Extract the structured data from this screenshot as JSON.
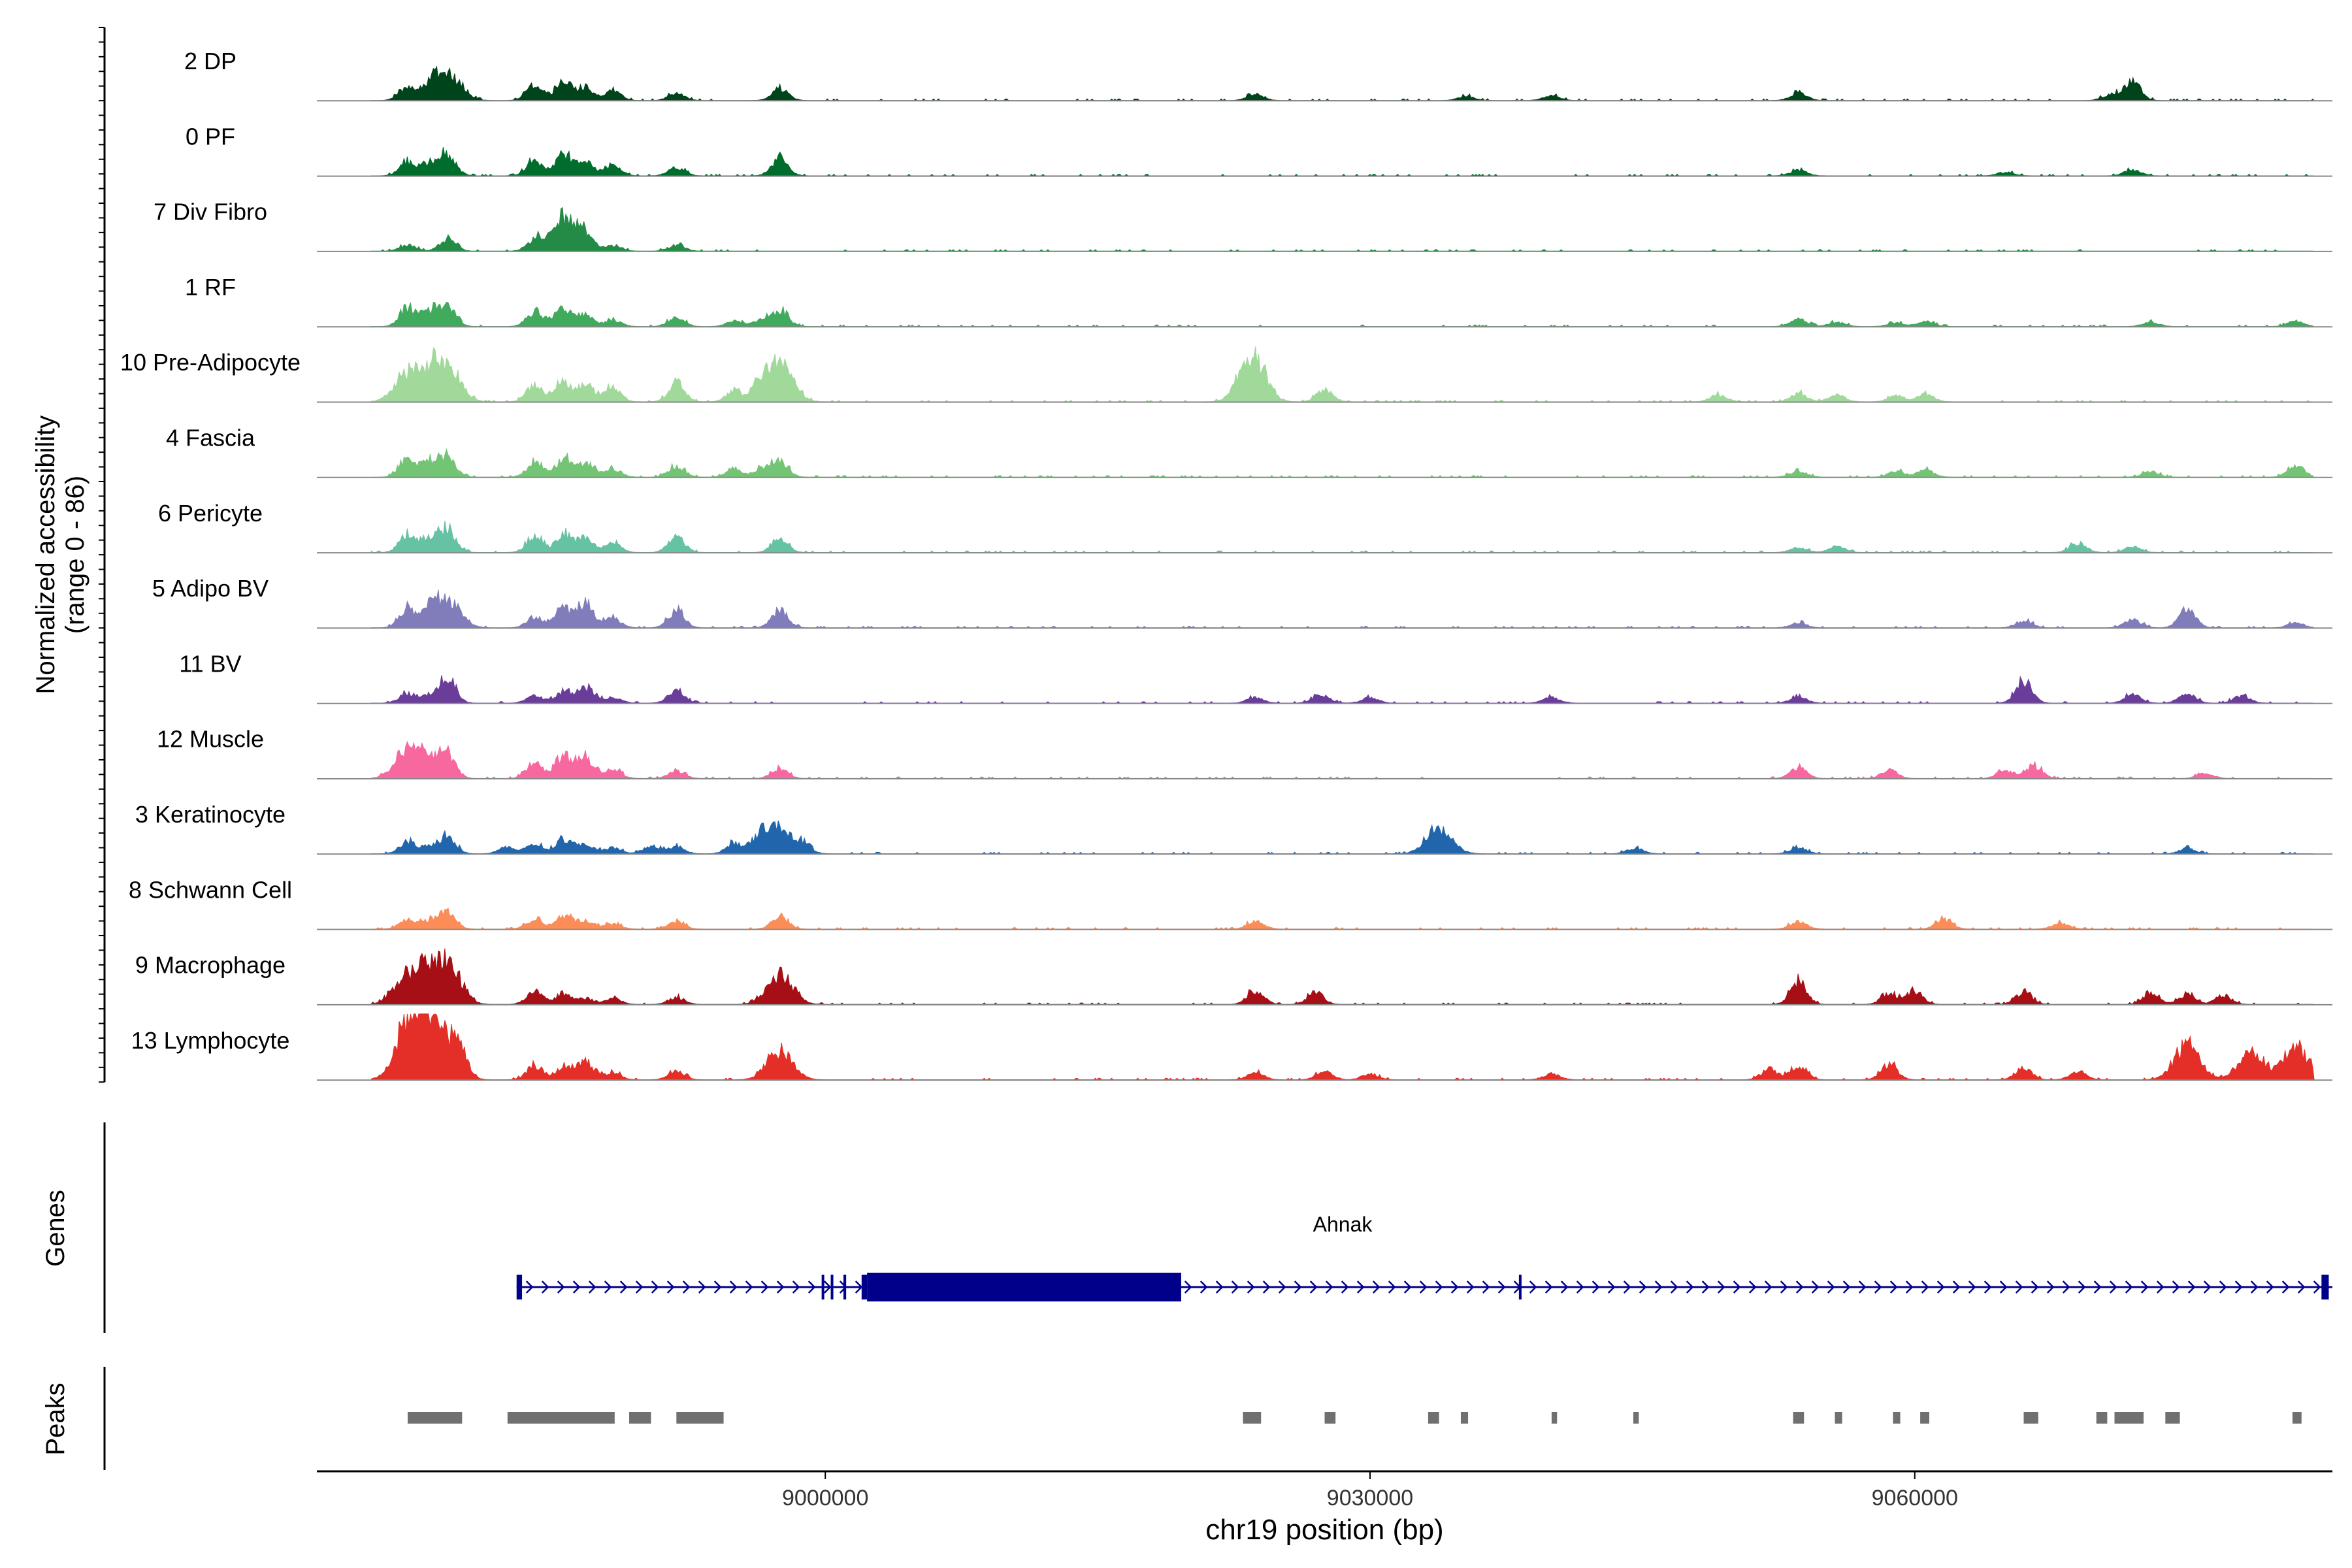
{
  "chart_data": {
    "type": "area",
    "title": "",
    "ylabel": "Normalized accessibility",
    "ylabel_range": "(range 0 - 86)",
    "y_range": [
      0,
      86
    ],
    "xlabel": "chr19 position (bp)",
    "x_range": [
      8972000,
      9083000
    ],
    "x_ticks": [
      {
        "value": 9000000,
        "label": "9000000"
      },
      {
        "value": 9030000,
        "label": "9030000"
      },
      {
        "value": 9060000,
        "label": "9060000"
      }
    ],
    "grid": false,
    "tracks": [
      {
        "name": "2 DP",
        "color": "#00441b",
        "peaks": [
          [
            8977000,
            2.3
          ],
          [
            8978200,
            1.8
          ],
          [
            8979200,
            4.5
          ],
          [
            8984000,
            2.6
          ],
          [
            8985600,
            3.2
          ],
          [
            8986800,
            1.9
          ],
          [
            8988300,
            1.6
          ],
          [
            8991800,
            1.2
          ],
          [
            8997500,
            2.0
          ],
          [
            9023700,
            1.1
          ],
          [
            9035300,
            0.7
          ],
          [
            9040000,
            0.8
          ],
          [
            9053600,
            1.2
          ],
          [
            9072000,
            3.2
          ],
          [
            9070800,
            1.0
          ]
        ]
      },
      {
        "name": "0 PF",
        "color": "#006d2c",
        "peaks": [
          [
            8977000,
            2.3
          ],
          [
            8978200,
            1.8
          ],
          [
            8979200,
            3.6
          ],
          [
            8984000,
            2.6
          ],
          [
            8985600,
            3.4
          ],
          [
            8986800,
            2.2
          ],
          [
            8988300,
            1.6
          ],
          [
            8991800,
            1.4
          ],
          [
            8997500,
            3.0
          ],
          [
            9053600,
            0.9
          ],
          [
            9065000,
            0.6
          ],
          [
            9072000,
            1.0
          ]
        ]
      },
      {
        "name": "7 Div Fibro",
        "color": "#238b45",
        "peaks": [
          [
            8977000,
            1.0
          ],
          [
            8979200,
            2.0
          ],
          [
            8984000,
            1.8
          ],
          [
            8985600,
            5.6
          ],
          [
            8986800,
            2.2
          ],
          [
            8988300,
            1.0
          ],
          [
            8991800,
            1.0
          ]
        ]
      },
      {
        "name": "1 RF",
        "color": "#41ab5d",
        "peaks": [
          [
            8977000,
            3.0
          ],
          [
            8978200,
            2.5
          ],
          [
            8979200,
            3.2
          ],
          [
            8984000,
            2.4
          ],
          [
            8985600,
            3.0
          ],
          [
            8986800,
            2.0
          ],
          [
            8988300,
            1.0
          ],
          [
            8991800,
            1.4
          ],
          [
            8995000,
            0.9
          ],
          [
            8996500,
            1.0
          ],
          [
            8997500,
            2.6
          ],
          [
            9053600,
            1.3
          ],
          [
            9055700,
            0.7
          ],
          [
            9059000,
            0.6
          ],
          [
            9060600,
            0.8
          ],
          [
            9073000,
            0.7
          ],
          [
            9081000,
            0.9
          ]
        ]
      },
      {
        "name": "10 Pre-Adipocyte",
        "color": "#a1d99b",
        "peaks": [
          [
            8977000,
            4.8
          ],
          [
            8978200,
            3.8
          ],
          [
            8979200,
            5.5
          ],
          [
            8984000,
            2.8
          ],
          [
            8985600,
            3.4
          ],
          [
            8986800,
            2.6
          ],
          [
            8988300,
            2.4
          ],
          [
            8991800,
            3.0
          ],
          [
            8995000,
            1.8
          ],
          [
            8996500,
            2.6
          ],
          [
            8997500,
            6.5
          ],
          [
            9023500,
            8.0
          ],
          [
            9027500,
            2.0
          ],
          [
            9049200,
            1.2
          ],
          [
            9053600,
            1.4
          ],
          [
            9055700,
            1.2
          ],
          [
            9059000,
            1.0
          ],
          [
            9060600,
            1.3
          ]
        ]
      },
      {
        "name": "4 Fascia",
        "color": "#74c476",
        "peaks": [
          [
            8977000,
            3.0
          ],
          [
            8978200,
            2.5
          ],
          [
            8979200,
            3.2
          ],
          [
            8984000,
            2.4
          ],
          [
            8985600,
            3.0
          ],
          [
            8986800,
            2.4
          ],
          [
            8988300,
            1.4
          ],
          [
            8991800,
            1.8
          ],
          [
            8995000,
            1.2
          ],
          [
            8996500,
            1.4
          ],
          [
            8997500,
            2.6
          ],
          [
            9053600,
            1.0
          ],
          [
            9059000,
            1.0
          ],
          [
            9060600,
            1.2
          ],
          [
            9081000,
            1.9
          ],
          [
            9073000,
            0.9
          ]
        ]
      },
      {
        "name": "6 Pericyte",
        "color": "#66c2a4",
        "peaks": [
          [
            8977000,
            3.0
          ],
          [
            8978200,
            2.4
          ],
          [
            8979200,
            3.8
          ],
          [
            8984000,
            2.6
          ],
          [
            8985600,
            3.0
          ],
          [
            8986800,
            2.4
          ],
          [
            8988300,
            1.6
          ],
          [
            8991800,
            2.6
          ],
          [
            8997500,
            2.2
          ],
          [
            9053600,
            0.8
          ],
          [
            9055700,
            1.0
          ],
          [
            9069000,
            1.6
          ],
          [
            9072000,
            0.9
          ]
        ]
      },
      {
        "name": "5 Adipo BV",
        "color": "#807dba",
        "peaks": [
          [
            8977000,
            3.2
          ],
          [
            8978200,
            2.0
          ],
          [
            8979200,
            4.8
          ],
          [
            8984000,
            1.8
          ],
          [
            8985600,
            3.2
          ],
          [
            8986800,
            3.8
          ],
          [
            8988300,
            1.6
          ],
          [
            8991800,
            2.8
          ],
          [
            8997500,
            3.0
          ],
          [
            9053600,
            0.8
          ],
          [
            9066000,
            1.2
          ],
          [
            9072000,
            1.4
          ],
          [
            9075000,
            3.2
          ],
          [
            9081000,
            0.8
          ]
        ]
      },
      {
        "name": "11 BV",
        "color": "#6a3d9a",
        "peaks": [
          [
            8977000,
            1.6
          ],
          [
            8978200,
            1.2
          ],
          [
            8979200,
            4.0
          ],
          [
            8984000,
            1.2
          ],
          [
            8985600,
            1.8
          ],
          [
            8986800,
            2.6
          ],
          [
            8988300,
            1.0
          ],
          [
            8991800,
            2.0
          ],
          [
            9023700,
            1.0
          ],
          [
            9027300,
            1.4
          ],
          [
            9030000,
            0.9
          ],
          [
            9040000,
            1.0
          ],
          [
            9053600,
            1.0
          ],
          [
            9066000,
            3.6
          ],
          [
            9072000,
            1.4
          ],
          [
            9075000,
            1.6
          ],
          [
            9078000,
            1.2
          ]
        ]
      },
      {
        "name": "12 Muscle",
        "color": "#f768a1",
        "peaks": [
          [
            8977000,
            4.5
          ],
          [
            8978200,
            3.2
          ],
          [
            8979200,
            4.0
          ],
          [
            8984000,
            2.6
          ],
          [
            8985600,
            3.8
          ],
          [
            8986800,
            3.4
          ],
          [
            8988300,
            1.6
          ],
          [
            8991800,
            1.2
          ],
          [
            8997500,
            1.6
          ],
          [
            9053600,
            1.8
          ],
          [
            9058600,
            1.4
          ],
          [
            9065000,
            1.4
          ],
          [
            9066600,
            2.0
          ],
          [
            9076000,
            0.8
          ]
        ]
      },
      {
        "name": "3 Keratinocyte",
        "color": "#2166ac",
        "peaks": [
          [
            8977000,
            2.0
          ],
          [
            8978200,
            1.2
          ],
          [
            8979200,
            2.8
          ],
          [
            8982500,
            1.2
          ],
          [
            8984000,
            1.6
          ],
          [
            8985600,
            2.4
          ],
          [
            8986800,
            1.6
          ],
          [
            8988300,
            1.0
          ],
          [
            8990400,
            1.3
          ],
          [
            8991800,
            1.2
          ],
          [
            8995000,
            1.8
          ],
          [
            8996500,
            2.8
          ],
          [
            8997500,
            4.2
          ],
          [
            8998800,
            1.2
          ],
          [
            9033800,
            4.2
          ],
          [
            9044600,
            0.9
          ],
          [
            9053600,
            1.0
          ],
          [
            9075000,
            0.9
          ]
        ]
      },
      {
        "name": "8 Schwann Cell",
        "color": "#fc8d59",
        "peaks": [
          [
            8977000,
            1.5
          ],
          [
            8978200,
            1.3
          ],
          [
            8979200,
            3.0
          ],
          [
            8984000,
            1.6
          ],
          [
            8985600,
            2.2
          ],
          [
            8986800,
            1.4
          ],
          [
            8988300,
            0.9
          ],
          [
            8991800,
            1.2
          ],
          [
            8997500,
            2.0
          ],
          [
            9023700,
            1.4
          ],
          [
            9053600,
            1.3
          ],
          [
            9061600,
            1.6
          ],
          [
            9068000,
            1.0
          ]
        ]
      },
      {
        "name": "9 Macrophage",
        "color": "#a50f15",
        "peaks": [
          [
            8977000,
            5.5
          ],
          [
            8978200,
            4.0
          ],
          [
            8979200,
            6.6
          ],
          [
            8984000,
            2.2
          ],
          [
            8985600,
            1.6
          ],
          [
            8986800,
            1.0
          ],
          [
            8988300,
            1.0
          ],
          [
            8991800,
            1.2
          ],
          [
            8997500,
            4.8
          ],
          [
            9023700,
            2.4
          ],
          [
            9027000,
            2.0
          ],
          [
            9053600,
            3.8
          ],
          [
            9058600,
            1.8
          ],
          [
            9060000,
            2.2
          ],
          [
            9066000,
            2.0
          ],
          [
            9073000,
            1.8
          ],
          [
            9075000,
            1.6
          ],
          [
            9077000,
            1.5
          ]
        ]
      },
      {
        "name": "13 Lymphocyte",
        "color": "#e32f27",
        "peaks": [
          [
            8977000,
            8.0
          ],
          [
            8977900,
            7.0
          ],
          [
            8978900,
            6.0
          ],
          [
            8979900,
            3.8
          ],
          [
            8984000,
            2.4
          ],
          [
            8985600,
            2.0
          ],
          [
            8986800,
            3.0
          ],
          [
            8988300,
            1.2
          ],
          [
            8991800,
            1.4
          ],
          [
            8997500,
            4.8
          ],
          [
            9023700,
            1.2
          ],
          [
            9027500,
            1.4
          ],
          [
            9030000,
            1.0
          ],
          [
            9040000,
            1.0
          ],
          [
            9052000,
            1.8
          ],
          [
            9053600,
            2.2
          ],
          [
            9058600,
            2.6
          ],
          [
            9066000,
            2.0
          ],
          [
            9069000,
            1.4
          ],
          [
            9075000,
            5.6
          ],
          [
            9078500,
            4.6
          ],
          [
            9081000,
            5.2
          ]
        ]
      }
    ],
    "genes_panel_label": "Genes",
    "gene": {
      "name": "Ahnak",
      "strand": "+",
      "start": 8983000,
      "end": 9083000,
      "exons": [
        [
          8983000,
          8983300
        ],
        [
          8999800,
          8999900
        ],
        [
          9000300,
          9000400
        ],
        [
          9001000,
          9001150
        ],
        [
          9002000,
          9002300
        ],
        [
          9002300,
          9019600
        ],
        [
          9038200,
          9038300
        ],
        [
          9082400,
          9082800
        ]
      ],
      "thick": [
        9002300,
        9019600
      ]
    },
    "peaks_panel_label": "Peaks",
    "peak_regions": [
      [
        8977000,
        8980000
      ],
      [
        8982500,
        8988400
      ],
      [
        8989200,
        8990400
      ],
      [
        8991800,
        8994400
      ],
      [
        9023000,
        9024000
      ],
      [
        9027500,
        9028100
      ],
      [
        9033200,
        9033800
      ],
      [
        9035000,
        9035400
      ],
      [
        9040000,
        9040300
      ],
      [
        9044500,
        9044800
      ],
      [
        9053300,
        9053900
      ],
      [
        9055600,
        9056000
      ],
      [
        9058800,
        9059200
      ],
      [
        9060300,
        9060800
      ],
      [
        9066000,
        9066800
      ],
      [
        9070000,
        9070600
      ],
      [
        9071000,
        9072600
      ],
      [
        9073800,
        9074600
      ],
      [
        9080800,
        9081300
      ]
    ]
  }
}
